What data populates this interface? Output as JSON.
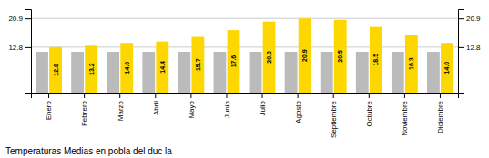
{
  "chart_data": {
    "type": "bar",
    "title": "Temperaturas Medias en pobla del duc la",
    "categories": [
      "Enero",
      "Febrero",
      "Marzo",
      "Abril",
      "Mayo",
      "Junio",
      "Julio",
      "Agosto",
      "Septiembre",
      "Octubre",
      "Noviembre",
      "Diciembre"
    ],
    "series": [
      {
        "color": "#BBBBBB",
        "values": [
          11.5,
          11.5,
          11.5,
          11.5,
          11.5,
          11.5,
          11.5,
          11.5,
          11.5,
          11.5,
          11.5,
          11.5
        ]
      },
      {
        "color": "#FFD700",
        "values": [
          12.8,
          13.2,
          14.0,
          14.4,
          15.7,
          17.6,
          20.0,
          20.9,
          20.5,
          18.5,
          16.3,
          14.0
        ],
        "data_labels": true,
        "value_labels": [
          "12.8",
          "13.2",
          "14.0",
          "14.4",
          "15.7",
          "17.6",
          "20.0",
          "20.9",
          "20.5",
          "18.5",
          "16.3",
          "14.0"
        ]
      }
    ],
    "ylim": [
      0,
      23.5
    ],
    "yticks": [
      12.8,
      20.9
    ],
    "y2lim": [
      0,
      23.5
    ],
    "y2ticks": [
      12.8,
      20.9
    ],
    "grid": true
  }
}
